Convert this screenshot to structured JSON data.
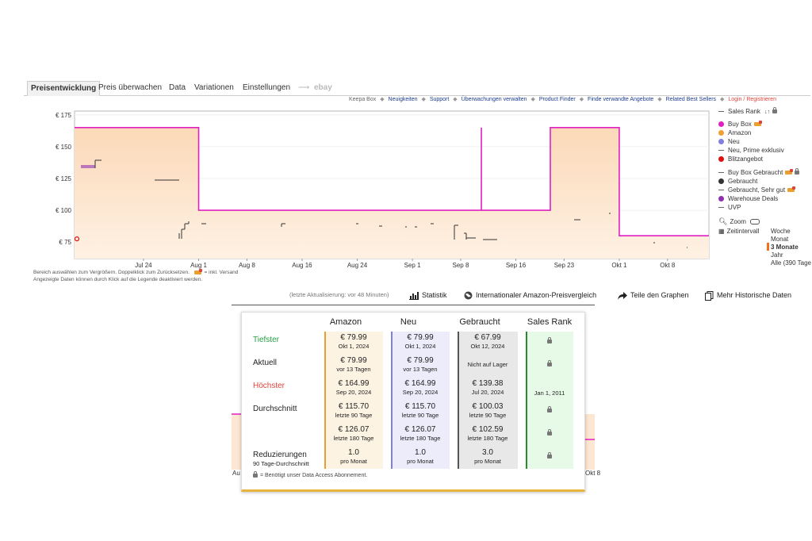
{
  "tabs": [
    {
      "label": "Preisentwicklung",
      "active": true
    },
    {
      "label": "Preis überwachen"
    },
    {
      "label": "Data"
    },
    {
      "label": "Variationen"
    },
    {
      "label": "Einstellungen"
    },
    {
      "label": "ebay",
      "disabled": true
    }
  ],
  "toplinks": {
    "keepa_box": "Keepa Box",
    "links": [
      "Neuigkeiten",
      "Support",
      "Überwachungen verwalten",
      "Product Finder",
      "Finde verwandte Angebote",
      "Related Best Sellers"
    ],
    "login": "Login / Registrieren"
  },
  "legend": {
    "sales_rank": "Sales Rank",
    "items": [
      {
        "label": "Buy Box",
        "color": "#e020c0",
        "type": "dot"
      },
      {
        "label": "Amazon",
        "color": "#f0a030",
        "type": "dot"
      },
      {
        "label": "Neu",
        "color": "#8080e0",
        "type": "dot"
      },
      {
        "label": "Neu, Prime exklusiv",
        "type": "dash"
      },
      {
        "label": "Blitzangebot",
        "color": "#e01010",
        "type": "dot"
      },
      {
        "label": "Buy Box Gebraucht",
        "type": "dash"
      },
      {
        "label": "Gebraucht",
        "color": "#333333",
        "type": "dot"
      },
      {
        "label": "Gebraucht, Sehr gut",
        "type": "dash"
      },
      {
        "label": "Warehouse Deals",
        "color": "#9030b0",
        "type": "dot"
      },
      {
        "label": "UVP",
        "type": "dash"
      }
    ],
    "zoom": "Zoom",
    "zeitintervall": "Zeitintervall",
    "ranges": [
      "Woche",
      "Monat",
      "3 Monate",
      "Jahr",
      "Alle (390 Tage"
    ],
    "selected_range": "3 Monate"
  },
  "chart_notes": {
    "line1": "Bereich auswählen zum Vergrößern. Doppelklick zum Zurücksetzen.",
    "line1b": "= inkl. Versand",
    "line2": "Angezeigte Daten können durch Klick auf die Legende deaktiviert werden."
  },
  "chart_data": {
    "type": "line",
    "y_ticks": [
      "€ 175",
      "€ 150",
      "€ 125",
      "€ 100",
      "€ 75"
    ],
    "ylim": [
      62,
      178
    ],
    "x_ticks": [
      "Jul 24",
      "Aug 1",
      "Aug 8",
      "Aug 16",
      "Aug 24",
      "Sep 1",
      "Sep 8",
      "Sep 16",
      "Sep 23",
      "Okt 1",
      "Okt 8"
    ],
    "series": [
      {
        "name": "Buy Box",
        "color": "#e020c0",
        "x": [
          "Jul 14",
          "Aug 1",
          "Aug 1",
          "Sep 11",
          "Sep 11",
          "Sep 11",
          "Sep 21",
          "Sep 21",
          "Okt 1",
          "Okt 1",
          "Okt 14"
        ],
        "y": [
          164.99,
          164.99,
          99.99,
          99.99,
          164.99,
          99.99,
          99.99,
          164.99,
          164.99,
          79.99,
          79.99
        ]
      },
      {
        "name": "Amazon",
        "color": "#f0a030",
        "x": [
          "Jul 14",
          "Aug 1",
          "Aug 1",
          "Sep 21",
          "Sep 21",
          "Okt 1",
          "Okt 1",
          "Okt 14"
        ],
        "y": [
          164.99,
          164.99,
          99.99,
          99.99,
          164.99,
          164.99,
          79.99,
          79.99
        ]
      }
    ]
  },
  "actions": {
    "last_update": "(letzte Aktualisierung: vor 48 Minuten)",
    "statistik": "Statistik",
    "international": "Internationaler Amazon-Preisvergleich",
    "teile": "Teile den Graphen",
    "mehr": "Mehr Historische Daten"
  },
  "stats": {
    "headers": [
      "Amazon",
      "Neu",
      "Gebraucht",
      "Sales Rank"
    ],
    "rows": [
      {
        "label": "Tiefster",
        "color": "#22a040",
        "amazon": {
          "v": "€ 79.99",
          "s": "Okt 1, 2024"
        },
        "neu": {
          "v": "€ 79.99",
          "s": "Okt 1, 2024"
        },
        "gebraucht": {
          "v": "€ 67.99",
          "s": "Okt 12, 2024"
        },
        "rank": {
          "lock": true
        }
      },
      {
        "label": "Aktuell",
        "color": "#222222",
        "amazon": {
          "v": "€ 79.99",
          "s": "vor 13 Tagen"
        },
        "neu": {
          "v": "€ 79.99",
          "s": "vor 13 Tagen"
        },
        "gebraucht": {
          "v": "",
          "s": "Nicht auf Lager"
        },
        "rank": {
          "lock": true
        }
      },
      {
        "label": "Höchster",
        "color": "#e0433a",
        "amazon": {
          "v": "€ 164.99",
          "s": "Sep 20, 2024"
        },
        "neu": {
          "v": "€ 164.99",
          "s": "Sep 20, 2024"
        },
        "gebraucht": {
          "v": "€ 139.38",
          "s": "Jul 20, 2024"
        },
        "rank": {
          "text": "Jan 1, 2011"
        }
      },
      {
        "label": "Durchschnitt",
        "color": "#222222",
        "amazon": {
          "v": "€ 115.70",
          "s": "letzte 90 Tage"
        },
        "neu": {
          "v": "€ 115.70",
          "s": "letzte 90 Tage"
        },
        "gebraucht": {
          "v": "€ 100.03",
          "s": "letzte 90 Tage"
        },
        "rank": {
          "lock": true
        }
      },
      {
        "label": "",
        "color": "#222222",
        "amazon": {
          "v": "€ 126.07",
          "s": "letzte 180 Tage"
        },
        "neu": {
          "v": "€ 126.07",
          "s": "letzte 180 Tage"
        },
        "gebraucht": {
          "v": "€ 102.59",
          "s": "letzte 180 Tage"
        },
        "rank": {
          "lock": true
        }
      },
      {
        "label": "Reduzierungen",
        "sublabel": "90 Tage-Durchschnitt",
        "color": "#222222",
        "amazon": {
          "v": "1.0",
          "s": "pro Monat"
        },
        "neu": {
          "v": "1.0",
          "s": "pro Monat"
        },
        "gebraucht": {
          "v": "3.0",
          "s": "pro Monat"
        },
        "rank": {
          "lock": true
        }
      }
    ],
    "footnote": "= Benötigt unser Data Access Abonnement."
  }
}
